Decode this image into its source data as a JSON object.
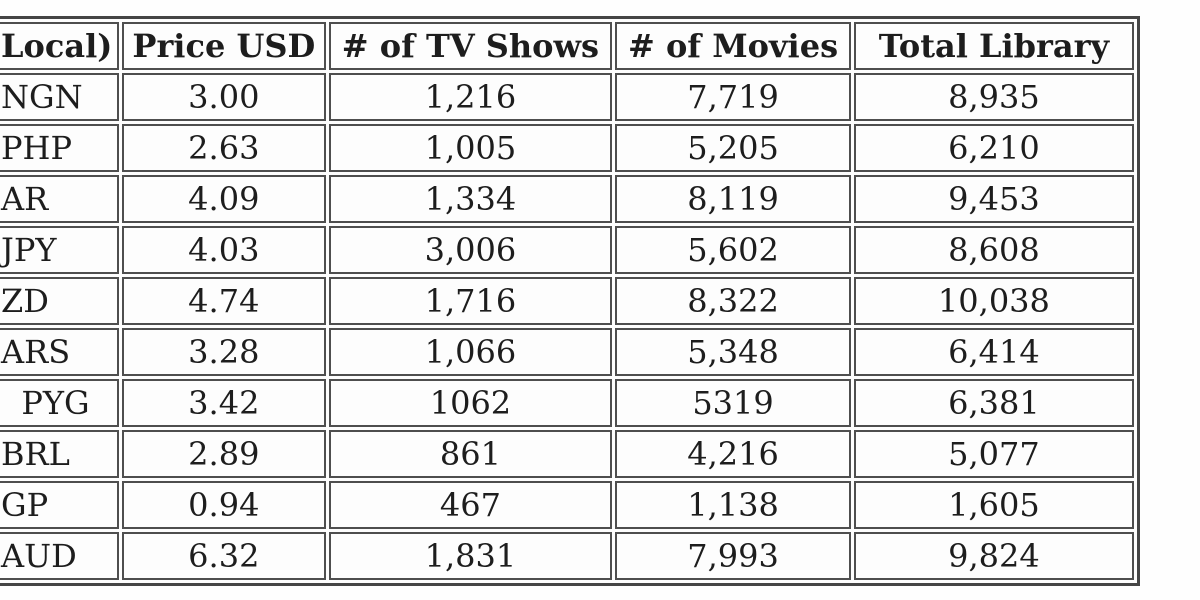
{
  "chart_data": {
    "type": "table",
    "title": "",
    "columns": [
      "Local)",
      "Price USD",
      "# of TV Shows",
      "# of Movies",
      "Total Library"
    ],
    "rows": [
      [
        "NGN",
        "3.00",
        "1,216",
        "7,719",
        "8,935"
      ],
      [
        "PHP",
        "2.63",
        "1,005",
        "5,205",
        "6,210"
      ],
      [
        "AR",
        "4.09",
        "1,334",
        "8,119",
        "9,453"
      ],
      [
        "JPY",
        "4.03",
        "3,006",
        "5,602",
        "8,608"
      ],
      [
        "ZD",
        "4.74",
        "1,716",
        "8,322",
        "10,038"
      ],
      [
        "ARS",
        "3.28",
        "1,066",
        "5,348",
        "6,414"
      ],
      [
        "  PYG",
        "3.42",
        "1062",
        "5319",
        "6,381"
      ],
      [
        "BRL",
        "2.89",
        "861",
        "4,216",
        "5,077"
      ],
      [
        "GP",
        "0.94",
        "467",
        "1,138",
        "1,605"
      ],
      [
        "AUD",
        "6.32",
        "1,831",
        "7,993",
        "9,824"
      ]
    ],
    "layout": {
      "grid": "on",
      "note_colors": {
        "border": "#4e4e4e",
        "text": "#1d1d1d",
        "background": "#fdfdfd"
      }
    }
  }
}
